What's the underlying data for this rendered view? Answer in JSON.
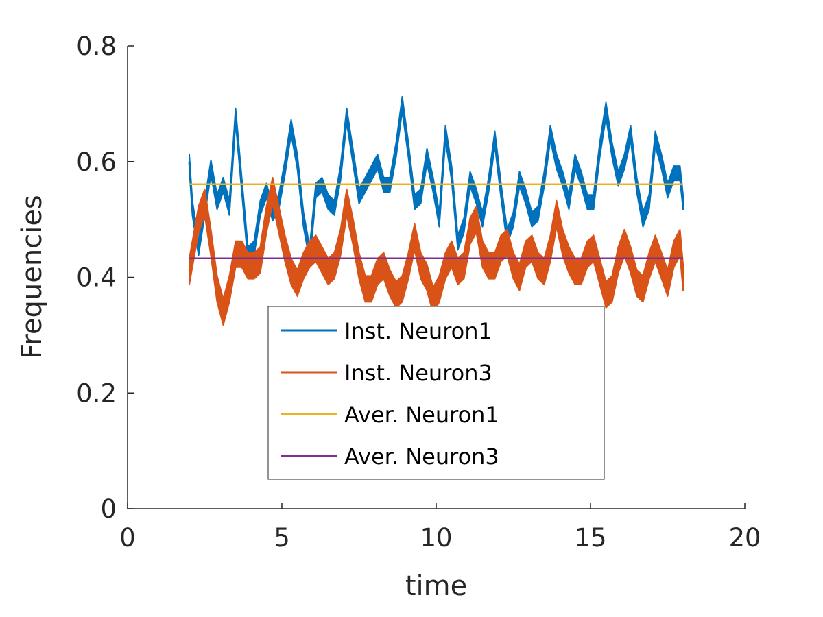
{
  "chart_data": {
    "type": "line",
    "title": "",
    "xlabel": "time",
    "ylabel": "Frequencies",
    "xlim": [
      0,
      20
    ],
    "ylim": [
      0,
      0.8
    ],
    "xticks": [
      0,
      5,
      10,
      15,
      20
    ],
    "xtick_labels": [
      "0",
      "5",
      "10",
      "15",
      "20"
    ],
    "yticks": [
      0,
      0.2,
      0.4,
      0.6,
      0.8
    ],
    "ytick_labels": [
      "0",
      "0.2",
      "0.4",
      "0.6",
      "0.8"
    ],
    "grid": false,
    "legend_position": "bottom-center",
    "series": [
      {
        "name": "Inst. Neuron1",
        "color": "#0072BD",
        "x": [
          2.0,
          2.1,
          2.3,
          2.5,
          2.7,
          2.9,
          3.1,
          3.3,
          3.5,
          3.7,
          3.9,
          4.1,
          4.3,
          4.5,
          4.7,
          4.9,
          5.1,
          5.3,
          5.5,
          5.7,
          5.9,
          6.1,
          6.3,
          6.5,
          6.7,
          6.9,
          7.1,
          7.3,
          7.5,
          7.7,
          7.9,
          8.1,
          8.3,
          8.5,
          8.7,
          8.9,
          9.1,
          9.3,
          9.5,
          9.7,
          9.9,
          10.1,
          10.3,
          10.5,
          10.7,
          10.9,
          11.1,
          11.3,
          11.5,
          11.7,
          11.9,
          12.1,
          12.3,
          12.5,
          12.7,
          12.9,
          13.1,
          13.3,
          13.5,
          13.7,
          13.9,
          14.1,
          14.3,
          14.5,
          14.7,
          14.9,
          15.1,
          15.3,
          15.5,
          15.7,
          15.9,
          16.1,
          16.3,
          16.5,
          16.7,
          16.9,
          17.1,
          17.3,
          17.5,
          17.7,
          17.9,
          18.0
        ],
        "values": [
          0.6,
          0.52,
          0.45,
          0.52,
          0.59,
          0.53,
          0.56,
          0.52,
          0.68,
          0.56,
          0.44,
          0.45,
          0.52,
          0.55,
          0.51,
          0.53,
          0.59,
          0.66,
          0.6,
          0.5,
          0.44,
          0.55,
          0.56,
          0.53,
          0.52,
          0.58,
          0.68,
          0.61,
          0.54,
          0.56,
          0.58,
          0.6,
          0.56,
          0.56,
          0.62,
          0.7,
          0.62,
          0.53,
          0.54,
          0.61,
          0.56,
          0.5,
          0.65,
          0.58,
          0.46,
          0.49,
          0.57,
          0.54,
          0.5,
          0.56,
          0.64,
          0.55,
          0.47,
          0.5,
          0.57,
          0.54,
          0.5,
          0.51,
          0.57,
          0.65,
          0.6,
          0.57,
          0.53,
          0.6,
          0.57,
          0.53,
          0.53,
          0.62,
          0.69,
          0.62,
          0.57,
          0.6,
          0.65,
          0.56,
          0.5,
          0.53,
          0.64,
          0.6,
          0.55,
          0.58,
          0.58,
          0.53
        ],
        "band_width": 0.025
      },
      {
        "name": "Inst. Neuron3",
        "color": "#D95319",
        "x": [
          2.0,
          2.1,
          2.3,
          2.5,
          2.7,
          2.9,
          3.1,
          3.3,
          3.5,
          3.7,
          3.9,
          4.1,
          4.3,
          4.5,
          4.7,
          4.9,
          5.1,
          5.3,
          5.5,
          5.7,
          5.9,
          6.1,
          6.3,
          6.5,
          6.7,
          6.9,
          7.1,
          7.3,
          7.5,
          7.7,
          7.9,
          8.1,
          8.3,
          8.5,
          8.7,
          8.9,
          9.1,
          9.3,
          9.5,
          9.7,
          9.9,
          10.1,
          10.3,
          10.5,
          10.7,
          10.9,
          11.1,
          11.3,
          11.5,
          11.7,
          11.9,
          12.1,
          12.3,
          12.5,
          12.7,
          12.9,
          13.1,
          13.3,
          13.5,
          13.7,
          13.9,
          14.1,
          14.3,
          14.5,
          14.7,
          14.9,
          15.1,
          15.3,
          15.5,
          15.7,
          15.9,
          16.1,
          16.3,
          16.5,
          16.7,
          16.9,
          17.1,
          17.3,
          17.5,
          17.7,
          17.9,
          18.0
        ],
        "values": [
          0.41,
          0.44,
          0.5,
          0.53,
          0.46,
          0.38,
          0.34,
          0.38,
          0.44,
          0.44,
          0.42,
          0.42,
          0.43,
          0.5,
          0.55,
          0.5,
          0.45,
          0.41,
          0.39,
          0.42,
          0.44,
          0.45,
          0.43,
          0.41,
          0.42,
          0.46,
          0.53,
          0.48,
          0.42,
          0.38,
          0.38,
          0.41,
          0.42,
          0.39,
          0.37,
          0.38,
          0.42,
          0.47,
          0.42,
          0.4,
          0.36,
          0.38,
          0.42,
          0.44,
          0.41,
          0.42,
          0.48,
          0.5,
          0.44,
          0.42,
          0.42,
          0.45,
          0.46,
          0.42,
          0.4,
          0.44,
          0.45,
          0.42,
          0.41,
          0.45,
          0.51,
          0.46,
          0.43,
          0.41,
          0.41,
          0.44,
          0.45,
          0.41,
          0.37,
          0.38,
          0.43,
          0.46,
          0.43,
          0.39,
          0.38,
          0.42,
          0.45,
          0.42,
          0.39,
          0.44,
          0.46,
          0.4
        ],
        "band_width": 0.045
      },
      {
        "name": "Aver. Neuron1",
        "color": "#EDB120",
        "x": [
          2.0,
          18.0
        ],
        "values": [
          0.561,
          0.561
        ]
      },
      {
        "name": "Aver. Neuron3",
        "color": "#7E2F8E",
        "x": [
          2.0,
          18.0
        ],
        "values": [
          0.433,
          0.433
        ]
      }
    ]
  }
}
